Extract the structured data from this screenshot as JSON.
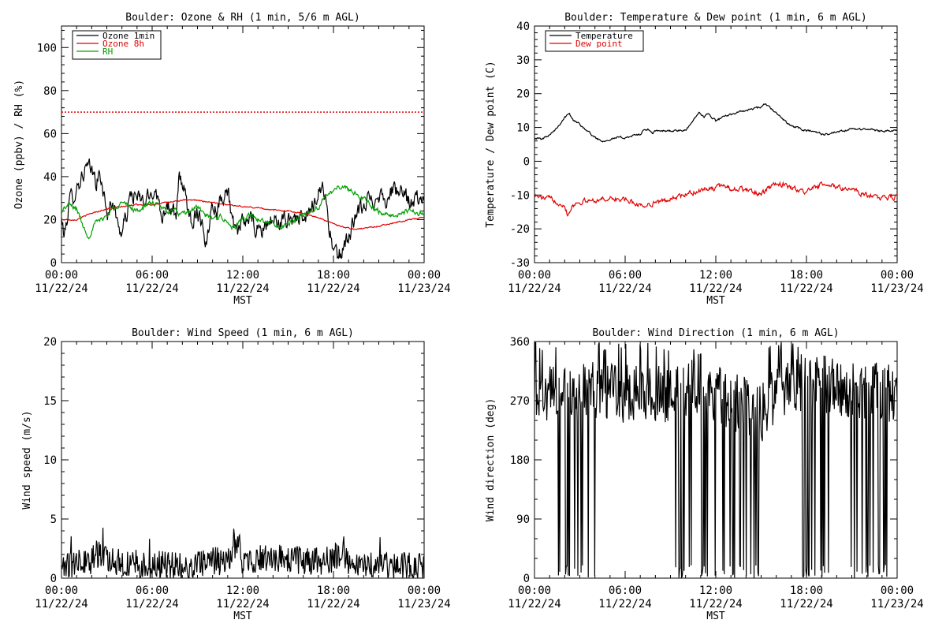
{
  "colors": {
    "black": "#000000",
    "red": "#e00000",
    "green": "#00a000"
  },
  "chart_data": [
    {
      "id": "ozone-rh",
      "type": "line",
      "title": "Boulder: Ozone & RH (1 min, 5/6 m AGL)",
      "xlabel": "MST",
      "ylabel": "Ozone (ppbv) / RH (%)",
      "xlim": [
        0,
        24
      ],
      "ylim": [
        0,
        110
      ],
      "yticks": [
        0,
        20,
        40,
        60,
        80,
        100
      ],
      "xtick_time": [
        "00:00",
        "06:00",
        "12:00",
        "18:00",
        "00:00"
      ],
      "xtick_date": [
        "11/22/24",
        "11/22/24",
        "11/22/24",
        "11/22/24",
        "11/23/24"
      ],
      "legend": {
        "placement": "top-left",
        "entries": [
          {
            "label": "Ozone 1min",
            "color": "#000000"
          },
          {
            "label": "Ozone 8h",
            "color": "#e00000"
          },
          {
            "label": "RH",
            "color": "#00a000"
          }
        ]
      },
      "reference_line": {
        "y": 70,
        "color": "#e00000",
        "style": "dotted"
      },
      "series": [
        {
          "name": "Ozone 1min",
          "color": "#000000",
          "noise": 3.5,
          "x": [
            0,
            0.2,
            0.5,
            0.8,
            1.2,
            1.6,
            2,
            2.3,
            2.6,
            3,
            3.4,
            3.7,
            4,
            4.3,
            4.6,
            5,
            5.4,
            5.8,
            6.2,
            6.6,
            7,
            7.3,
            7.6,
            7.8,
            8,
            8.3,
            8.6,
            9,
            9.3,
            9.6,
            10,
            10.3,
            10.6,
            11,
            11.5,
            12,
            12.4,
            12.8,
            13.2,
            13.6,
            14,
            14.5,
            15,
            15.5,
            16,
            16.5,
            17,
            17.3,
            17.6,
            17.9,
            18.2,
            18.6,
            19,
            19.4,
            19.8,
            20.2,
            20.6,
            21,
            21.5,
            22,
            22.5,
            23,
            23.5,
            24
          ],
          "y": [
            20,
            12,
            28,
            32,
            38,
            44,
            42,
            38,
            40,
            22,
            30,
            18,
            14,
            22,
            32,
            30,
            28,
            30,
            36,
            22,
            28,
            24,
            20,
            40,
            38,
            26,
            20,
            24,
            20,
            8,
            30,
            24,
            32,
            34,
            12,
            18,
            22,
            16,
            14,
            18,
            20,
            18,
            20,
            22,
            18,
            24,
            34,
            36,
            24,
            8,
            2,
            6,
            12,
            20,
            24,
            28,
            30,
            32,
            30,
            34,
            32,
            28,
            30,
            27
          ]
        },
        {
          "name": "Ozone 8h",
          "color": "#e00000",
          "noise": 0.25,
          "x": [
            0,
            1,
            2,
            3,
            4,
            5,
            6,
            7,
            8,
            9,
            10,
            11,
            12,
            13,
            14,
            15,
            16,
            17,
            18,
            19,
            19.5,
            20,
            21,
            22,
            23,
            24
          ],
          "y": [
            20,
            20,
            23,
            25,
            26,
            27,
            27,
            28,
            29,
            29,
            28,
            27,
            26,
            25.5,
            24.5,
            24,
            23,
            21,
            18,
            16,
            15.5,
            16,
            17,
            18.5,
            20,
            21
          ]
        },
        {
          "name": "RH",
          "color": "#00a000",
          "noise": 1.0,
          "x": [
            0,
            0.5,
            1,
            1.5,
            1.8,
            2.2,
            3,
            3.5,
            4,
            4.5,
            5,
            5.5,
            6,
            6.5,
            7,
            7.5,
            8,
            8.5,
            9,
            9.5,
            10,
            10.5,
            11,
            11.5,
            12,
            12.5,
            13,
            14,
            14.5,
            15,
            15.5,
            16,
            16.5,
            17,
            17.5,
            18,
            18.5,
            19,
            19.5,
            20,
            20.5,
            21,
            21.5,
            22,
            23,
            24
          ],
          "y": [
            24,
            27,
            25,
            16,
            12,
            18,
            22,
            26,
            28,
            26,
            24,
            26,
            28,
            26,
            24,
            24,
            22,
            24,
            26,
            22,
            20,
            22,
            18,
            16,
            20,
            22,
            20,
            18,
            16,
            18,
            20,
            22,
            24,
            26,
            30,
            34,
            36,
            34,
            32,
            30,
            26,
            24,
            22,
            22,
            24,
            23
          ]
        }
      ]
    },
    {
      "id": "temp-dew",
      "type": "line",
      "title": "Boulder: Temperature & Dew point (1 min, 6 m AGL)",
      "xlabel": "MST",
      "ylabel": "Temperature / Dew point (C)",
      "xlim": [
        0,
        24
      ],
      "ylim": [
        -30,
        40
      ],
      "yticks": [
        -30,
        -20,
        -10,
        0,
        10,
        20,
        30,
        40
      ],
      "xtick_time": [
        "00:00",
        "06:00",
        "12:00",
        "18:00",
        "00:00"
      ],
      "xtick_date": [
        "11/22/24",
        "11/22/24",
        "11/22/24",
        "11/22/24",
        "11/23/24"
      ],
      "legend": {
        "placement": "top-left",
        "entries": [
          {
            "label": "Temperature",
            "color": "#000000"
          },
          {
            "label": "Dew point",
            "color": "#e00000"
          }
        ]
      },
      "series": [
        {
          "name": "Temperature",
          "color": "#000000",
          "noise": 0.25,
          "x": [
            0,
            0.5,
            1,
            1.5,
            2,
            2.3,
            2.6,
            3,
            3.5,
            4,
            4.5,
            5,
            5.5,
            6,
            6.5,
            7,
            7.2,
            7.5,
            7.8,
            8,
            9,
            10,
            10.5,
            10.9,
            11.2,
            11.5,
            12,
            12.5,
            13,
            13.5,
            14,
            14.5,
            15,
            15.3,
            15.8,
            16.3,
            16.8,
            17,
            18,
            18.5,
            19,
            19.5,
            20,
            21,
            22,
            23,
            24
          ],
          "y": [
            7,
            6.5,
            8,
            10,
            13,
            14,
            12,
            11,
            9,
            7,
            6,
            6.5,
            7,
            7,
            7.5,
            8,
            9,
            9.5,
            8,
            9,
            9,
            9,
            12,
            15,
            13,
            14,
            12,
            13,
            14,
            14.5,
            15,
            15.5,
            16,
            17,
            15,
            13,
            11,
            10.5,
            9,
            9,
            8,
            8,
            8.5,
            9.5,
            9.5,
            9,
            9
          ]
        },
        {
          "name": "Dew point",
          "color": "#e00000",
          "noise": 0.6,
          "x": [
            0,
            0.5,
            1,
            1.5,
            2,
            2.2,
            2.5,
            3,
            4,
            5,
            6,
            7,
            7.5,
            8,
            8.5,
            9,
            10,
            11,
            12,
            12.5,
            13,
            14,
            14.5,
            15,
            15.5,
            16,
            16.5,
            17,
            18,
            18.5,
            19,
            20,
            21,
            22,
            23,
            24
          ],
          "y": [
            -10,
            -11,
            -11,
            -12,
            -13,
            -16,
            -13,
            -12,
            -11.5,
            -11,
            -11.5,
            -13,
            -13,
            -12,
            -12,
            -11,
            -10,
            -8.5,
            -8,
            -7,
            -8,
            -8.5,
            -9,
            -10,
            -8,
            -6.5,
            -7,
            -8,
            -9,
            -8,
            -7,
            -7.5,
            -8.5,
            -10,
            -11,
            -10.5
          ]
        }
      ]
    },
    {
      "id": "wind-speed",
      "type": "line",
      "title": "Boulder: Wind Speed (1 min, 6 m AGL)",
      "xlabel": "MST",
      "ylabel": "Wind speed (m/s)",
      "xlim": [
        0,
        24
      ],
      "ylim": [
        0,
        20
      ],
      "yticks": [
        0,
        5,
        10,
        15,
        20
      ],
      "xtick_time": [
        "00:00",
        "06:00",
        "12:00",
        "18:00",
        "00:00"
      ],
      "xtick_date": [
        "11/22/24",
        "11/22/24",
        "11/22/24",
        "11/22/24",
        "11/23/24"
      ],
      "series": [
        {
          "name": "",
          "color": "#000000",
          "noise": 0.8,
          "x": [
            0,
            1,
            2,
            2.3,
            3,
            4,
            5,
            6,
            7,
            8,
            9,
            10,
            11,
            11.4,
            12,
            13,
            14,
            15,
            16,
            17,
            18,
            18.4,
            19,
            20,
            21,
            22,
            23,
            24
          ],
          "y": [
            1.3,
            1.2,
            1.5,
            2.2,
            1.4,
            1.3,
            1.2,
            1.2,
            1.1,
            1.0,
            1.3,
            1.5,
            1.4,
            3,
            1.5,
            1.6,
            1.8,
            1.6,
            1.5,
            1.4,
            1.6,
            2.2,
            1.3,
            1.2,
            1.1,
            1.0,
            1.0,
            1.1
          ]
        }
      ]
    },
    {
      "id": "wind-direction",
      "type": "line",
      "title": "Boulder: Wind Direction (1 min, 6 m AGL)",
      "xlabel": "MST",
      "ylabel": "Wind direction (deg)",
      "xlim": [
        0,
        24
      ],
      "ylim": [
        0,
        360
      ],
      "yticks": [
        0,
        90,
        180,
        270,
        360
      ],
      "xtick_time": [
        "00:00",
        "06:00",
        "12:00",
        "18:00",
        "00:00"
      ],
      "xtick_date": [
        "11/22/24",
        "11/22/24",
        "11/22/24",
        "11/22/24",
        "11/23/24"
      ],
      "series": [
        {
          "name": "",
          "color": "#000000",
          "noise": 45,
          "x": [
            0,
            2,
            4,
            6,
            8,
            10,
            11,
            12,
            13,
            14,
            15,
            16,
            18,
            20,
            22,
            24
          ],
          "y": [
            280,
            280,
            285,
            280,
            280,
            285,
            300,
            280,
            270,
            260,
            250,
            280,
            300,
            290,
            285,
            280
          ]
        }
      ]
    }
  ]
}
